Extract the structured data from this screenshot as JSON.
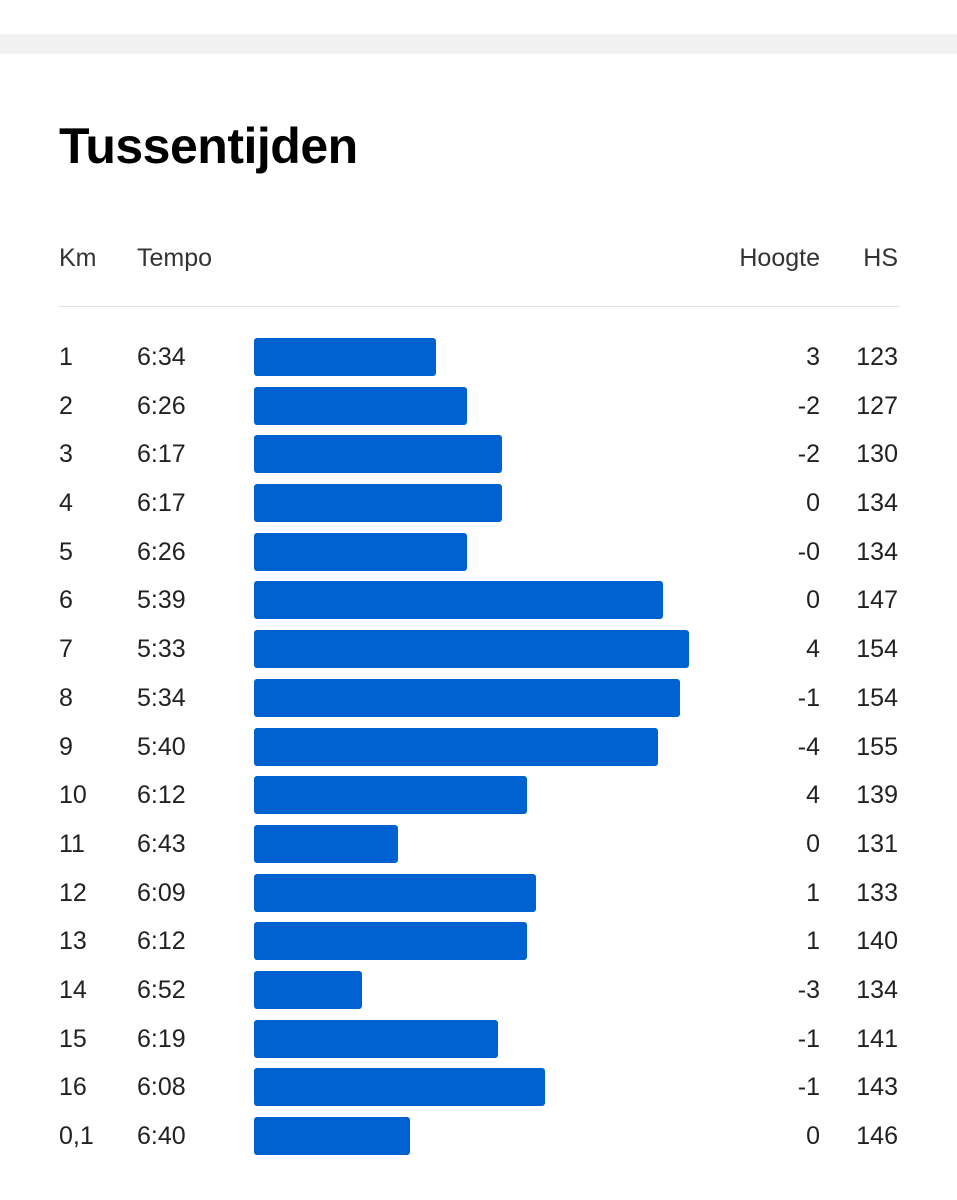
{
  "title": "Tussentijden",
  "headers": {
    "km": "Km",
    "tempo": "Tempo",
    "hoogte": "Hoogte",
    "hs": "HS"
  },
  "colors": {
    "bar": "#0061d1"
  },
  "splits": [
    {
      "km": "1",
      "tempo": "6:34",
      "hoogte": "3",
      "hs": "123",
      "bar_fraction": 0.419
    },
    {
      "km": "2",
      "tempo": "6:26",
      "hoogte": "-2",
      "hs": "127",
      "bar_fraction": 0.489
    },
    {
      "km": "3",
      "tempo": "6:17",
      "hoogte": "-2",
      "hs": "130",
      "bar_fraction": 0.57
    },
    {
      "km": "4",
      "tempo": "6:17",
      "hoogte": "0",
      "hs": "134",
      "bar_fraction": 0.57
    },
    {
      "km": "5",
      "tempo": "6:26",
      "hoogte": "-0",
      "hs": "134",
      "bar_fraction": 0.489
    },
    {
      "km": "6",
      "tempo": "5:39",
      "hoogte": "0",
      "hs": "147",
      "bar_fraction": 0.94
    },
    {
      "km": "7",
      "tempo": "5:33",
      "hoogte": "4",
      "hs": "154",
      "bar_fraction": 1.0
    },
    {
      "km": "8",
      "tempo": "5:34",
      "hoogte": "-1",
      "hs": "154",
      "bar_fraction": 0.979
    },
    {
      "km": "9",
      "tempo": "5:40",
      "hoogte": "-4",
      "hs": "155",
      "bar_fraction": 0.928
    },
    {
      "km": "10",
      "tempo": "6:12",
      "hoogte": "4",
      "hs": "139",
      "bar_fraction": 0.628
    },
    {
      "km": "11",
      "tempo": "6:43",
      "hoogte": "0",
      "hs": "131",
      "bar_fraction": 0.33
    },
    {
      "km": "12",
      "tempo": "6:09",
      "hoogte": "1",
      "hs": "133",
      "bar_fraction": 0.649
    },
    {
      "km": "13",
      "tempo": "6:12",
      "hoogte": "1",
      "hs": "140",
      "bar_fraction": 0.628
    },
    {
      "km": "14",
      "tempo": "6:52",
      "hoogte": "-3",
      "hs": "134",
      "bar_fraction": 0.248
    },
    {
      "km": "15",
      "tempo": "6:19",
      "hoogte": "-1",
      "hs": "141",
      "bar_fraction": 0.56
    },
    {
      "km": "16",
      "tempo": "6:08",
      "hoogte": "-1",
      "hs": "143",
      "bar_fraction": 0.67
    },
    {
      "km": "0,1",
      "tempo": "6:40",
      "hoogte": "0",
      "hs": "146",
      "bar_fraction": 0.358
    }
  ]
}
